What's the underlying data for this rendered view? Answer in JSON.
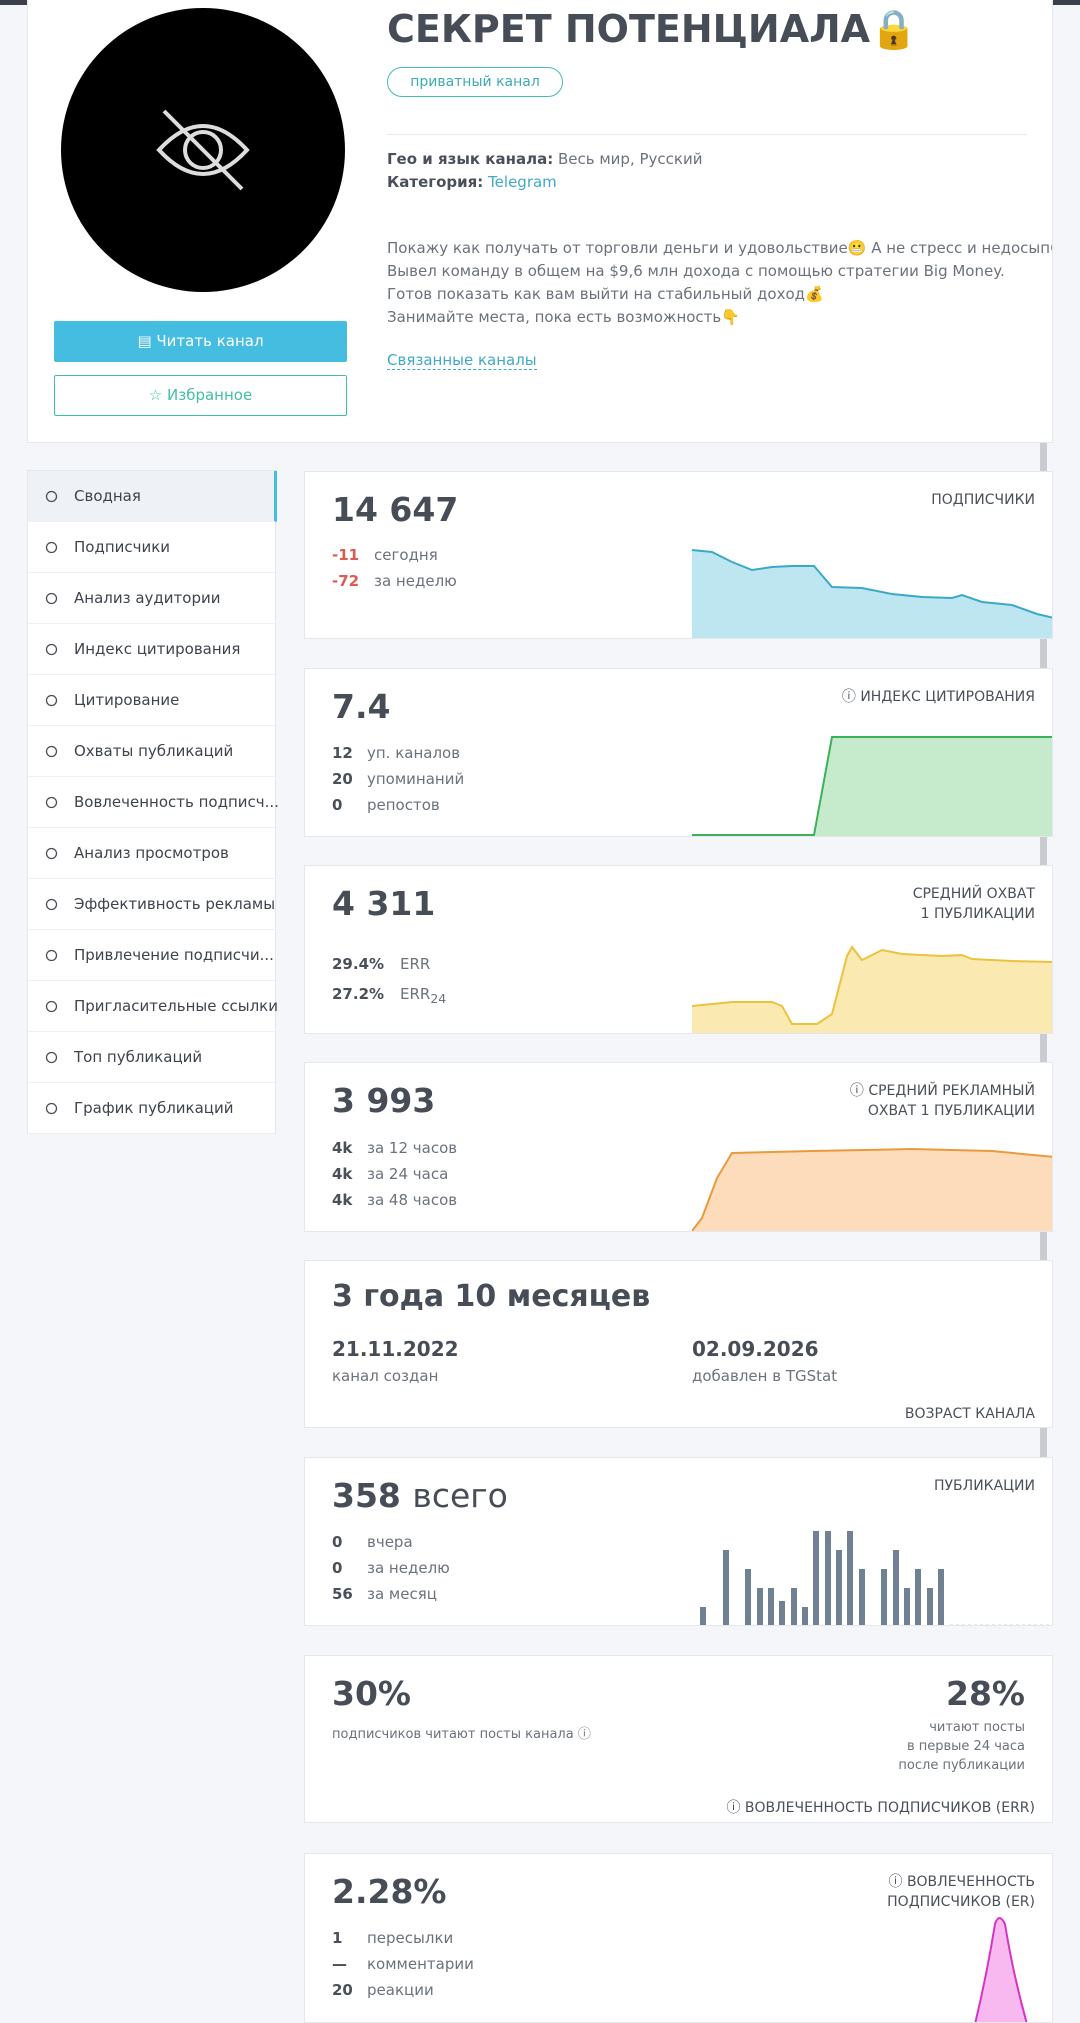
{
  "header": {
    "title": "СЕКРЕТ ПОТЕНЦИАЛА🔒",
    "badge": "приватный канал",
    "geo_label": "Гео и язык канала:",
    "geo_value": "Весь мир, Русский",
    "category_label": "Категория:",
    "category_value": "Telegram",
    "description": [
      "Покажу как получать от торговли деньги и удовольствие😬 А не стресс и недосып😫",
      "Вывел команду в общем на $9,6 млн дохода с помощью стратегии Big Money.",
      "Готов показать как вам выйти на стабильный доход💰",
      "Занимайте места, пока есть возможность👇"
    ],
    "related_link": "Связанные каналы",
    "read_button": "Читать канал",
    "favorite_button": "Избранное"
  },
  "sidebar": {
    "items": [
      "Сводная",
      "Подписчики",
      "Анализ аудитории",
      "Индекс цитирования",
      "Цитирование",
      "Охваты публикаций",
      "Вовлеченность подписч...",
      "Анализ просмотров",
      "Эффективность рекламы",
      "Привлечение подписчи...",
      "Пригласительные ссылки",
      "Топ публикаций",
      "График публикаций"
    ]
  },
  "cards": {
    "subscribers": {
      "value": "14 647",
      "label": "ПОДПИСЧИКИ",
      "stats": [
        {
          "value": "-11",
          "label": "сегодня"
        },
        {
          "value": "-72",
          "label": "за неделю"
        }
      ]
    },
    "citation": {
      "value": "7.4",
      "label": "ИНДЕКС ЦИТИРОВАНИЯ",
      "stats": [
        {
          "value": "12",
          "label": "уп. каналов"
        },
        {
          "value": "20",
          "label": "упоминаний"
        },
        {
          "value": "0",
          "label": "репостов"
        }
      ]
    },
    "reach": {
      "value": "4 311",
      "label": [
        "СРЕДНИЙ ОХВАТ",
        "1 ПУБЛИКАЦИИ"
      ],
      "stats": [
        {
          "value": "29.4%",
          "label": "ERR"
        },
        {
          "value": "27.2%",
          "label": "ERR",
          "sub": "24"
        }
      ]
    },
    "ad_reach": {
      "value": "3 993",
      "label": [
        "СРЕДНИЙ РЕКЛАМНЫЙ",
        "ОХВАТ 1 ПУБЛИКАЦИИ"
      ],
      "stats": [
        {
          "value": "4k",
          "label": "за 12 часов"
        },
        {
          "value": "4k",
          "label": "за 24 часа"
        },
        {
          "value": "4k",
          "label": "за 48 часов"
        }
      ]
    },
    "age": {
      "value": "3 года 10 месяцев",
      "created": "21.11.2022",
      "created_label": "канал создан",
      "added": "02.09.2026",
      "added_label": "добавлен в TGStat",
      "label": "ВОЗРАСТ КАНАЛА"
    },
    "posts": {
      "value": "358",
      "unit": "всего",
      "label": "ПУБЛИКАЦИИ",
      "stats": [
        {
          "value": "0",
          "label": "вчера"
        },
        {
          "value": "0",
          "label": "за неделю"
        },
        {
          "value": "56",
          "label": "за месяц"
        }
      ]
    },
    "err": {
      "value": "30%",
      "caption": "подписчиков читают посты канала",
      "value2": "28%",
      "caption2": [
        "читают посты",
        "в первые 24 часа",
        "после публикации"
      ],
      "label": "ВОВЛЕЧЕННОСТЬ ПОДПИСЧИКОВ (ERR)"
    },
    "er": {
      "value": "2.28%",
      "label": [
        "ВОВЛЕЧЕННОСТЬ",
        "ПОДПИСЧИКОВ (ER)"
      ],
      "stats": [
        {
          "value": "1",
          "label": "пересылки"
        },
        {
          "value": "—",
          "label": "комментарии"
        },
        {
          "value": "20",
          "label": "реакции"
        }
      ]
    }
  }
}
